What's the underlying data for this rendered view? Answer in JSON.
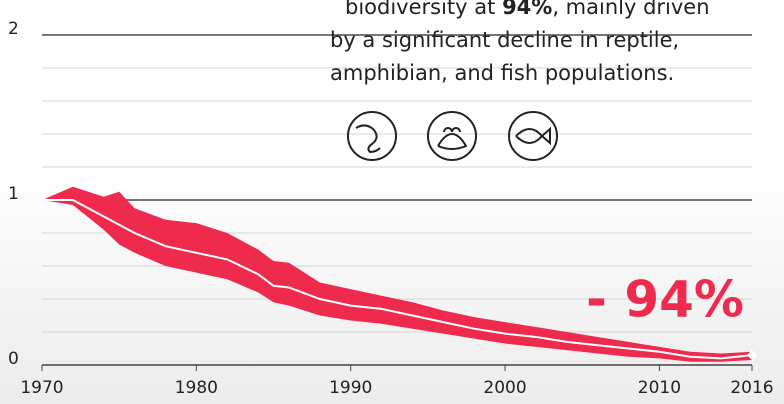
{
  "chart_data": {
    "type": "line",
    "x": [
      1970,
      1972,
      1974,
      1975,
      1976,
      1978,
      1980,
      1982,
      1984,
      1985,
      1986,
      1988,
      1990,
      1992,
      1994,
      1996,
      1998,
      2000,
      2002,
      2004,
      2006,
      2008,
      2010,
      2012,
      2014,
      2016
    ],
    "series": [
      {
        "color": "#ffffff",
        "band_color": "#ee2b4c",
        "values": [
          1.0,
          1.0,
          0.9,
          0.85,
          0.8,
          0.72,
          0.68,
          0.64,
          0.55,
          0.48,
          0.47,
          0.4,
          0.36,
          0.34,
          0.3,
          0.26,
          0.22,
          0.19,
          0.17,
          0.14,
          0.12,
          0.1,
          0.08,
          0.05,
          0.04,
          0.06
        ],
        "upper": [
          1.0,
          1.08,
          1.02,
          1.05,
          0.95,
          0.88,
          0.86,
          0.8,
          0.7,
          0.63,
          0.62,
          0.5,
          0.46,
          0.42,
          0.38,
          0.33,
          0.29,
          0.26,
          0.23,
          0.2,
          0.17,
          0.14,
          0.11,
          0.08,
          0.07,
          0.08
        ],
        "lower": [
          1.0,
          0.97,
          0.82,
          0.73,
          0.68,
          0.6,
          0.56,
          0.52,
          0.44,
          0.38,
          0.36,
          0.3,
          0.27,
          0.25,
          0.22,
          0.19,
          0.16,
          0.13,
          0.11,
          0.09,
          0.07,
          0.05,
          0.04,
          0.02,
          0.02,
          0.03
        ]
      }
    ],
    "xlim": [
      1970,
      2016
    ],
    "xticks": [
      1970,
      1980,
      1990,
      2000,
      2010,
      2016
    ],
    "ylim": [
      0,
      2
    ],
    "yticks": [
      0,
      1,
      2
    ],
    "minor_grid": [
      0.2,
      0.4,
      0.6,
      0.8,
      1.2,
      1.4,
      1.6,
      1.8
    ],
    "annotation": {
      "line1_pre": "biodiversity at ",
      "line1_bold": "94%",
      "line1_post": ", mainly driven",
      "line2": "by a significant decline in reptile,",
      "line3": "amphibian, and fish populations."
    },
    "big_label": "- 94%"
  }
}
